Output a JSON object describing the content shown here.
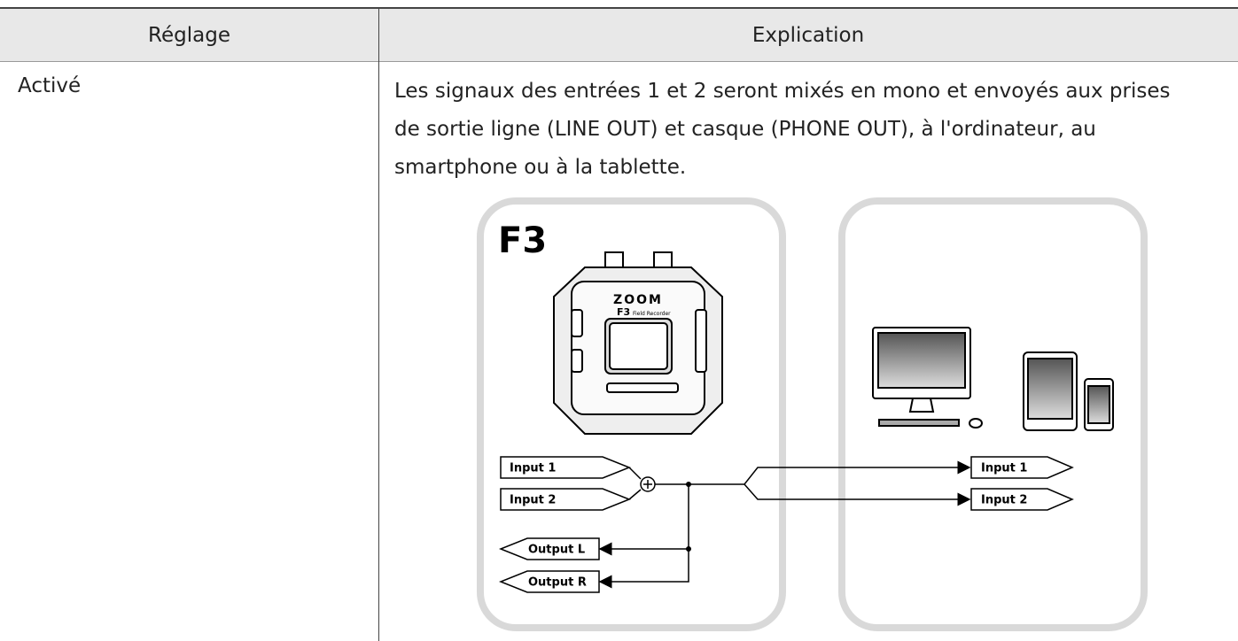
{
  "table": {
    "headers": [
      "Réglage",
      "Explication"
    ],
    "rows": [
      [
        "Activé",
        "Les signaux des entrées 1 et 2 seront mixés en mono et envoyés aux prises de sortie ligne (LINE OUT) et casque (PHONE OUT), à l'ordinateur, au smartphone ou à la tablette."
      ]
    ]
  },
  "diagram": {
    "device_title": "F3",
    "device_logo": "ZOOM",
    "device_model": "F3",
    "device_subtitle": "Field Recorder",
    "left_tags": [
      "Input 1",
      "Input 2",
      "Output L",
      "Output R"
    ],
    "right_tags": [
      "Input 1",
      "Input 2"
    ]
  }
}
